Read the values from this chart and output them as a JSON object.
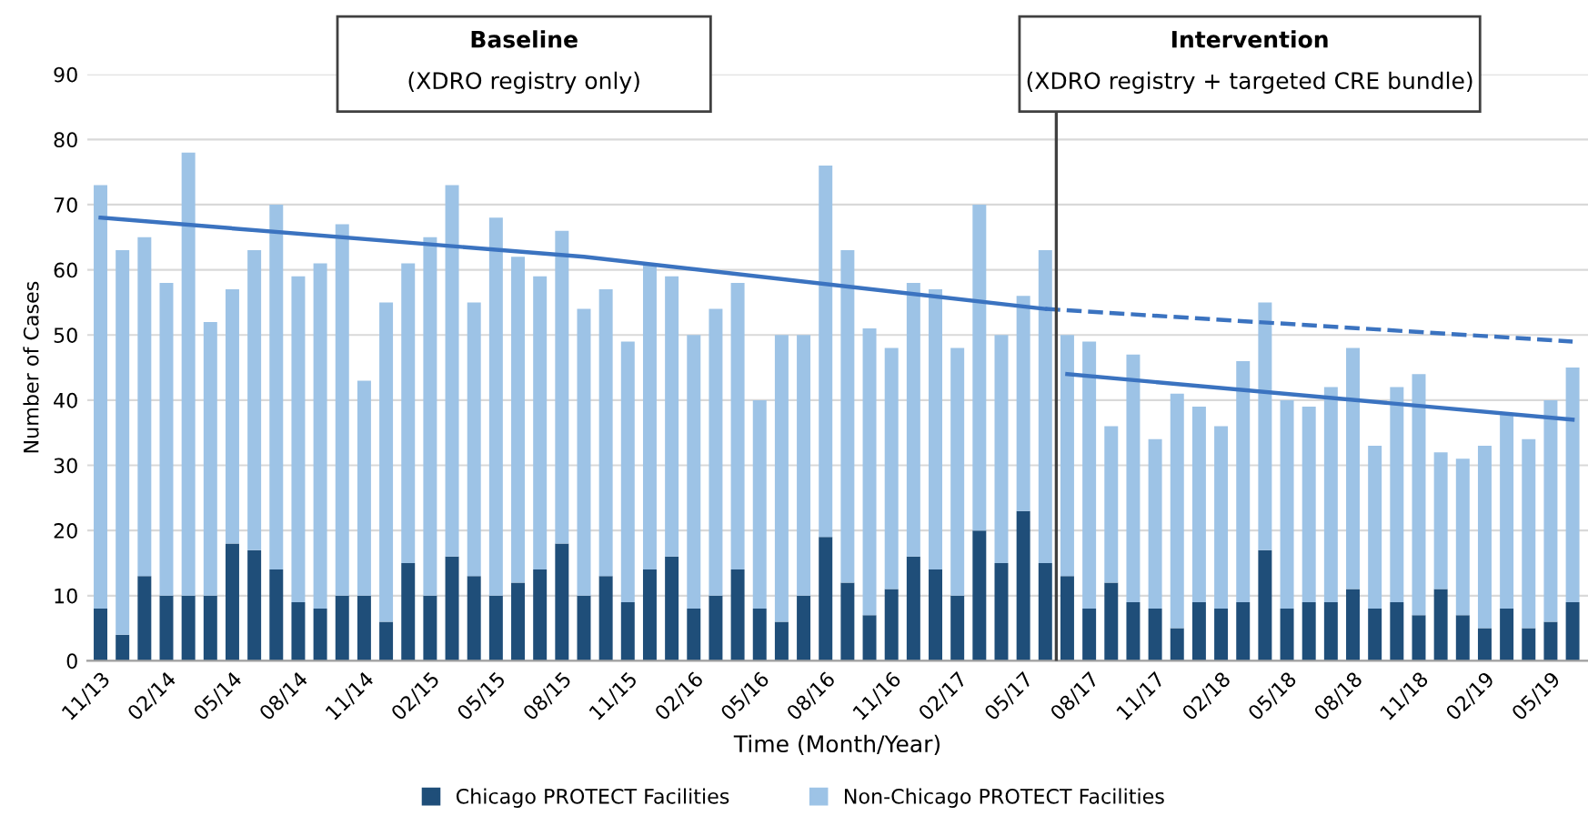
{
  "chart_data": {
    "type": "bar",
    "stacked": true,
    "categories": [
      "11/13",
      null,
      null,
      "02/14",
      null,
      null,
      "05/14",
      null,
      null,
      "08/14",
      null,
      null,
      "11/14",
      null,
      null,
      "02/15",
      null,
      null,
      "05/15",
      null,
      null,
      "08/15",
      null,
      null,
      "11/15",
      null,
      null,
      "02/16",
      null,
      null,
      "05/16",
      null,
      null,
      "08/16",
      null,
      null,
      "11/16",
      null,
      null,
      "02/17",
      null,
      null,
      "05/17",
      null,
      null,
      "08/17",
      null,
      null,
      "11/17",
      null,
      null,
      "02/18",
      null,
      null,
      "05/18",
      null,
      null,
      "08/18",
      null,
      null,
      "11/18",
      null,
      null,
      "02/19",
      null,
      null,
      "05/19",
      null
    ],
    "series": [
      {
        "name": "Chicago PROTECT Facilities",
        "color": "#1f4e79",
        "values": [
          8,
          4,
          13,
          10,
          10,
          10,
          18,
          17,
          14,
          9,
          8,
          10,
          10,
          6,
          15,
          10,
          16,
          13,
          10,
          12,
          14,
          18,
          10,
          13,
          9,
          14,
          16,
          8,
          10,
          14,
          8,
          6,
          10,
          19,
          12,
          7,
          11,
          16,
          14,
          10,
          20,
          15,
          23,
          15,
          13,
          8,
          12,
          9,
          8,
          5,
          9,
          8,
          9,
          17,
          8,
          9,
          9,
          11,
          8,
          9,
          7,
          11,
          7,
          5,
          8,
          5,
          6,
          9
        ]
      },
      {
        "name": "Non-Chicago PROTECT Facilities",
        "color": "#9dc3e6",
        "values": [
          65,
          59,
          52,
          48,
          68,
          42,
          39,
          46,
          56,
          50,
          53,
          57,
          33,
          49,
          46,
          55,
          57,
          42,
          58,
          50,
          45,
          48,
          44,
          44,
          40,
          47,
          43,
          42,
          44,
          44,
          32,
          44,
          40,
          57,
          51,
          44,
          37,
          42,
          43,
          38,
          50,
          35,
          33,
          48,
          37,
          41,
          24,
          38,
          26,
          36,
          30,
          28,
          37,
          38,
          32,
          30,
          33,
          37,
          25,
          33,
          37,
          21,
          24,
          28,
          30,
          29,
          34,
          36
        ]
      },
      {
        "type": "line",
        "color": "#3b73c0",
        "line_style": "solid",
        "values": [
          68,
          null,
          null,
          null,
          null,
          null,
          null,
          null,
          null,
          null,
          null,
          null,
          null,
          null,
          null,
          null,
          null,
          null,
          null,
          null,
          null,
          null,
          62,
          null,
          null,
          null,
          null,
          null,
          null,
          null,
          null,
          null,
          null,
          null,
          null,
          null,
          null,
          null,
          null,
          null,
          null,
          null,
          null,
          54,
          null,
          null,
          null,
          null,
          null,
          null,
          null,
          null,
          null,
          null,
          null,
          null,
          null,
          null,
          null,
          null,
          null,
          null,
          null,
          null,
          null,
          null,
          null,
          null
        ]
      },
      {
        "type": "line",
        "color": "#3b73c0",
        "line_style": "dashed",
        "values": [
          null,
          null,
          null,
          null,
          null,
          null,
          null,
          null,
          null,
          null,
          null,
          null,
          null,
          null,
          null,
          null,
          null,
          null,
          null,
          null,
          null,
          null,
          null,
          null,
          null,
          null,
          null,
          null,
          null,
          null,
          null,
          null,
          null,
          null,
          null,
          null,
          null,
          null,
          null,
          null,
          null,
          null,
          null,
          54,
          null,
          null,
          null,
          null,
          null,
          null,
          null,
          null,
          null,
          null,
          null,
          null,
          null,
          null,
          null,
          null,
          null,
          null,
          null,
          null,
          null,
          null,
          null,
          49
        ]
      },
      {
        "type": "line",
        "color": "#3b73c0",
        "line_style": "solid",
        "values": [
          null,
          null,
          null,
          null,
          null,
          null,
          null,
          null,
          null,
          null,
          null,
          null,
          null,
          null,
          null,
          null,
          null,
          null,
          null,
          null,
          null,
          null,
          null,
          null,
          null,
          null,
          null,
          null,
          null,
          null,
          null,
          null,
          null,
          null,
          null,
          null,
          null,
          null,
          null,
          null,
          null,
          null,
          null,
          null,
          44,
          null,
          null,
          null,
          null,
          null,
          null,
          null,
          null,
          null,
          null,
          null,
          null,
          null,
          null,
          null,
          null,
          null,
          null,
          null,
          null,
          null,
          null,
          37
        ]
      }
    ],
    "xlabel": "Time (Month/Year)",
    "ylabel": "Number of Cases",
    "ylim": [
      0,
      90
    ],
    "yticks": [
      0,
      10,
      20,
      30,
      40,
      50,
      60,
      70,
      80,
      90
    ],
    "grid": "y",
    "legend": "bottom",
    "annotations": [
      "Baseline",
      "(XDRO registry only)",
      "Intervention",
      "(XDRO registry + targeted CRE bundle)"
    ]
  }
}
